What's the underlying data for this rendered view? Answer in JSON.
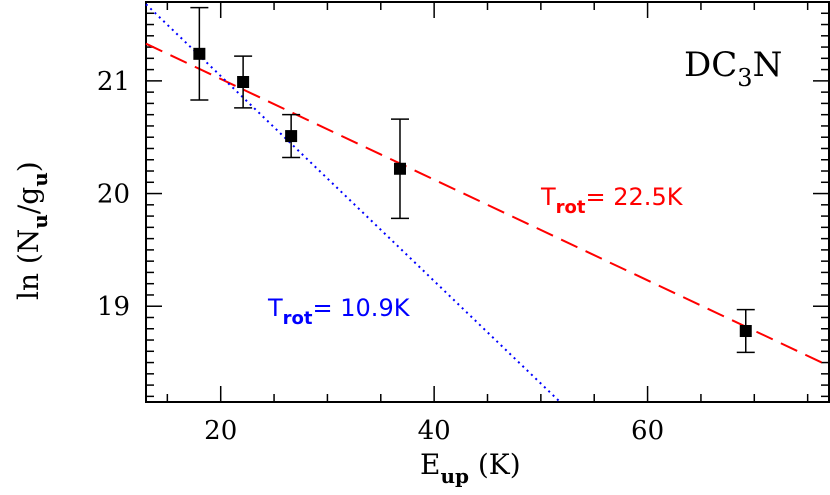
{
  "chart_data": {
    "type": "scatter",
    "molecule_label": {
      "base": "DC",
      "sub": "3",
      "tail": "N"
    },
    "xlabel": {
      "base": "E",
      "sub": "up",
      "tail": " (K)"
    },
    "ylabel": {
      "base": "ln (N",
      "sub1": "u",
      "mid": "/g",
      "sub2": "u",
      "tail": ")"
    },
    "xlim": [
      13,
      77
    ],
    "ylim": [
      18.15,
      21.7
    ],
    "x_ticks": [
      20,
      40,
      60
    ],
    "y_ticks": [
      19,
      20,
      21
    ],
    "x_tick_labels": [
      "20",
      "40",
      "60"
    ],
    "y_tick_labels": [
      "19",
      "20",
      "21"
    ],
    "points": [
      {
        "x": 18.0,
        "y": 21.24,
        "err": 0.41
      },
      {
        "x": 22.1,
        "y": 20.99,
        "err": 0.23
      },
      {
        "x": 26.6,
        "y": 20.51,
        "err": 0.19
      },
      {
        "x": 36.8,
        "y": 20.22,
        "err": 0.44
      },
      {
        "x": 69.2,
        "y": 18.78,
        "err": 0.19
      }
    ],
    "fits": [
      {
        "name_base": "T",
        "name_sub": "rot",
        "value_text": "=  22.5K",
        "color": "#ff0000",
        "style": "dashed",
        "line": [
          [
            13,
            21.33
          ],
          [
            77,
            18.47
          ]
        ]
      },
      {
        "name_base": "T",
        "name_sub": "rot",
        "value_text": "=  10.9K",
        "color": "#0000ff",
        "style": "dotted",
        "line": [
          [
            13,
            21.68
          ],
          [
            51.8,
            18.15
          ]
        ]
      }
    ]
  }
}
